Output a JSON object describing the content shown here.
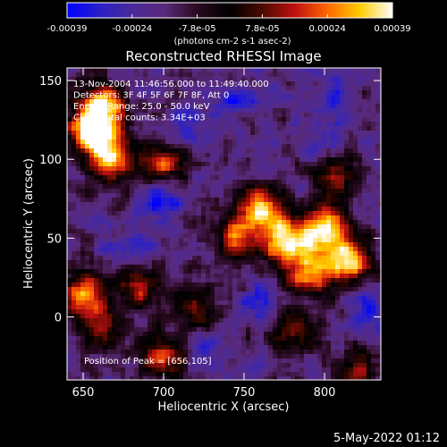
{
  "footer_date": "5-May-2022 01:12",
  "colors": {
    "background": "#000000",
    "text": "#ffffff"
  },
  "chart_data": {
    "type": "heatmap",
    "title": "Reconstructed RHESSI Image",
    "xlabel": "Heliocentric X (arcsec)",
    "ylabel": "Heliocentric Y (arcsec)",
    "xlim": [
      640,
      835
    ],
    "ylim": [
      -40,
      158
    ],
    "xticks": [
      650,
      700,
      750,
      800
    ],
    "yticks": [
      0,
      50,
      100,
      150
    ],
    "colorbar": {
      "ticks": [
        "-0.00039",
        "-0.00024",
        "-7.8e-05",
        "7.8e-05",
        "0.00024",
        "0.00039"
      ],
      "range": [
        -0.00039,
        0.00039
      ],
      "unit_label": "(photons cm-2 s-1 asec-2)"
    },
    "annotations": [
      "13-Nov-2004 11:46:56.000 to 11:49:40.000",
      "Detectors: 3F 4F 5F 6F 7F 8F, Att 0",
      "Energy Range: 25.0 - 50.0 keV",
      "Clean      Total counts: 3.34E+03"
    ],
    "peak_label": "Position of Peak = [656,105]",
    "colormap": [
      "#0000ff",
      "#2a20c8",
      "#4a2a9a",
      "#5a2a7a",
      "#2a0a20",
      "#000000",
      "#4a0a00",
      "#c01010",
      "#ff6600",
      "#ffcc00",
      "#ffffff"
    ],
    "hotspots": [
      {
        "x": 656,
        "y": 118,
        "w": 1.0
      },
      {
        "x": 662,
        "y": 135,
        "w": 0.8
      },
      {
        "x": 668,
        "y": 100,
        "w": 0.8
      },
      {
        "x": 700,
        "y": 98,
        "w": 0.6
      },
      {
        "x": 805,
        "y": 90,
        "w": 0.5
      },
      {
        "x": 760,
        "y": 68,
        "w": 0.8
      },
      {
        "x": 775,
        "y": 48,
        "w": 0.85
      },
      {
        "x": 800,
        "y": 55,
        "w": 0.9
      },
      {
        "x": 815,
        "y": 35,
        "w": 0.8
      },
      {
        "x": 790,
        "y": 28,
        "w": 0.7
      },
      {
        "x": 745,
        "y": 50,
        "w": 0.6
      },
      {
        "x": 650,
        "y": 15,
        "w": 0.7
      },
      {
        "x": 660,
        "y": -5,
        "w": 0.5
      },
      {
        "x": 700,
        "y": -25,
        "w": 0.6
      },
      {
        "x": 685,
        "y": 20,
        "w": 0.5
      },
      {
        "x": 720,
        "y": 5,
        "w": 0.4
      },
      {
        "x": 780,
        "y": -10,
        "w": 0.45
      },
      {
        "x": 820,
        "y": -35,
        "w": 0.4
      }
    ],
    "coldspots": [
      {
        "x": 700,
        "y": 75,
        "w": 0.8
      },
      {
        "x": 715,
        "y": 120,
        "w": 0.6
      },
      {
        "x": 680,
        "y": 45,
        "w": 0.6
      },
      {
        "x": 745,
        "y": 135,
        "w": 0.5
      },
      {
        "x": 805,
        "y": 140,
        "w": 0.5
      },
      {
        "x": 760,
        "y": 10,
        "w": 0.6
      },
      {
        "x": 828,
        "y": 5,
        "w": 0.7
      },
      {
        "x": 725,
        "y": -20,
        "w": 0.5
      },
      {
        "x": 800,
        "y": 105,
        "w": 0.5
      }
    ]
  }
}
